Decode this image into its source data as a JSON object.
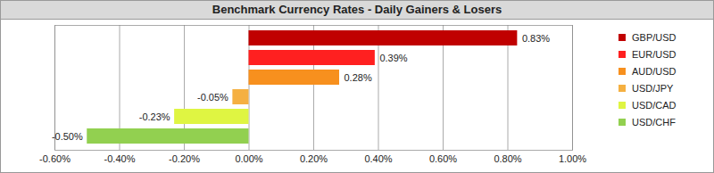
{
  "chart_data": {
    "type": "bar",
    "title": "Benchmark Currency Rates - Daily Gainers & Losers",
    "orientation": "horizontal",
    "categories": [
      "GBP/USD",
      "EUR/USD",
      "AUD/USD",
      "USD/JPY",
      "USD/CAD",
      "USD/CHF"
    ],
    "values": [
      0.83,
      0.39,
      0.28,
      -0.05,
      -0.23,
      -0.5
    ],
    "value_labels": [
      "0.83%",
      "0.39%",
      "0.28%",
      "-0.05%",
      "-0.23%",
      "-0.50%"
    ],
    "colors": [
      "#c00000",
      "#ff2020",
      "#f7901e",
      "#f5b041",
      "#dff542",
      "#92d050"
    ],
    "xlim": [
      -0.6,
      1.0
    ],
    "xticks": [
      {
        "value": -0.6,
        "label": "-0.60%"
      },
      {
        "value": -0.4,
        "label": "-0.40%"
      },
      {
        "value": -0.2,
        "label": "-0.20%"
      },
      {
        "value": 0,
        "label": "0.00%"
      },
      {
        "value": 0.2,
        "label": "0.20%"
      },
      {
        "value": 0.4,
        "label": "0.40%"
      },
      {
        "value": 0.6,
        "label": "0.60%"
      },
      {
        "value": 0.8,
        "label": "0.80%"
      },
      {
        "value": 1.0,
        "label": "1.00%"
      }
    ],
    "grid": true,
    "data_labels": true,
    "tick_labels": "x",
    "legend": "right"
  }
}
